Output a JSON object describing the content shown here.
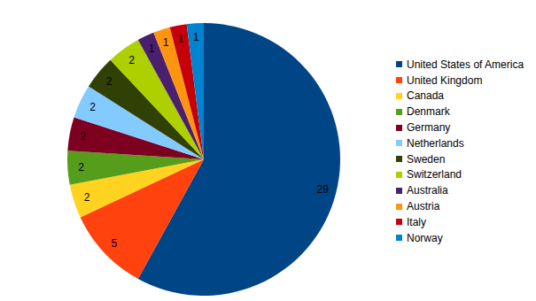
{
  "chart_data": {
    "type": "pie",
    "categories": [
      "United States of America",
      "United Kingdom",
      "Canada",
      "Denmark",
      "Germany",
      "Netherlands",
      "Sweden",
      "Switzerland",
      "Australia",
      "Austria",
      "Italy",
      "Norway"
    ],
    "values": [
      29,
      5,
      2,
      2,
      2,
      2,
      2,
      2,
      1,
      1,
      1,
      1
    ],
    "colors": [
      "#004586",
      "#ff420e",
      "#ffd320",
      "#579d1c",
      "#7e0021",
      "#83caff",
      "#314004",
      "#aecf00",
      "#4b1f6f",
      "#ff950e",
      "#c5000b",
      "#0084d1"
    ],
    "data_labels": true,
    "legend": "right"
  }
}
